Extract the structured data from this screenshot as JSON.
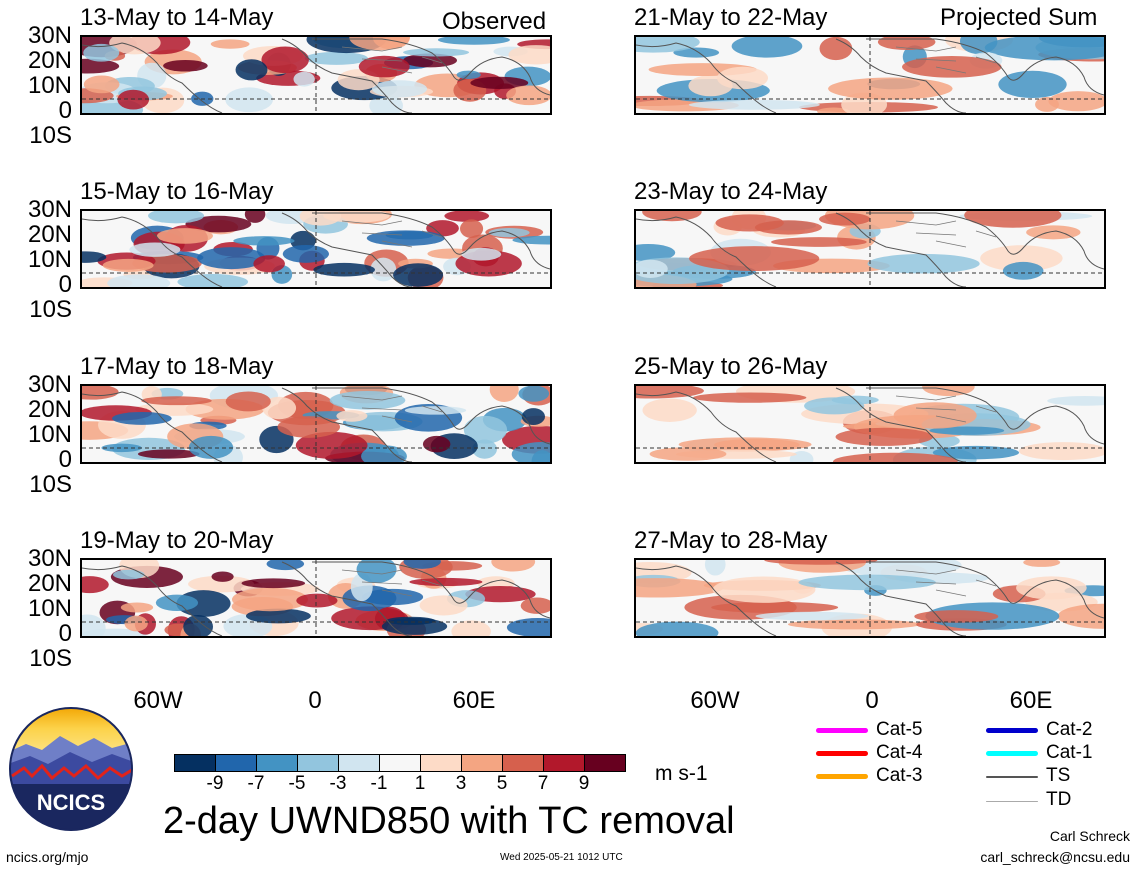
{
  "headers": {
    "left_tag": "Observed",
    "right_tag": "Projected Sum"
  },
  "panels_left": [
    {
      "date": "13-May to 14-May"
    },
    {
      "date": "15-May to 16-May"
    },
    {
      "date": "17-May to 18-May"
    },
    {
      "date": "19-May to 20-May"
    }
  ],
  "panels_right": [
    {
      "date": "21-May to 22-May"
    },
    {
      "date": "23-May to 24-May"
    },
    {
      "date": "25-May to 26-May"
    },
    {
      "date": "27-May to 28-May"
    }
  ],
  "lat_labels": [
    "30N",
    "20N",
    "10N",
    "0",
    "10S"
  ],
  "lon_labels": [
    "60W",
    "0",
    "60E"
  ],
  "colorbar": {
    "colors": [
      "#053061",
      "#2166ac",
      "#4393c3",
      "#92c5de",
      "#d1e5f0",
      "#f7f7f7",
      "#fddbc7",
      "#f4a582",
      "#d6604d",
      "#b2182b",
      "#67001f"
    ],
    "labels": [
      "-9",
      "-7",
      "-5",
      "-3",
      "-1",
      "1",
      "3",
      "5",
      "7",
      "9"
    ],
    "unit": "m s-1"
  },
  "title": "2-day UWND850 with TC removal",
  "legend": [
    {
      "label": "Cat-5",
      "color": "#ff00ff"
    },
    {
      "label": "Cat-4",
      "color": "#ff0000"
    },
    {
      "label": "Cat-3",
      "color": "#ffa500"
    },
    {
      "label": "Cat-2",
      "color": "#0000cc"
    },
    {
      "label": "Cat-1",
      "color": "#00ffff"
    },
    {
      "label": "TS",
      "color": "#555555"
    },
    {
      "label": "TD",
      "color": "#aaaaaa"
    }
  ],
  "logo": {
    "text": "NCICS"
  },
  "footer": {
    "left": "ncics.org/mjo",
    "timestamp": "Wed 2025-05-21 1012 UTC",
    "author": "Carl Schreck",
    "email": "carl_schreck@ncsu.edu"
  }
}
